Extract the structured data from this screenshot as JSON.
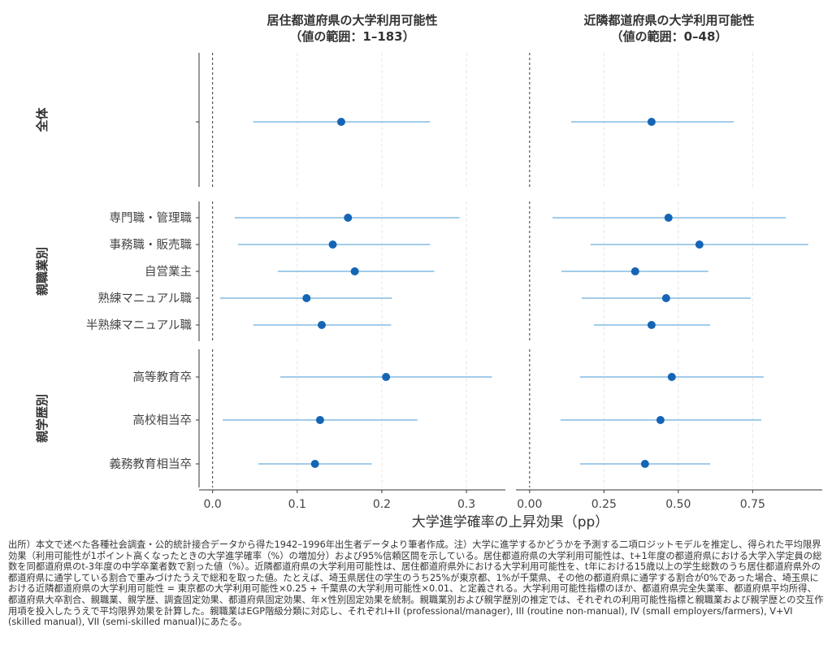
{
  "chart_data": {
    "type": "scatter",
    "subtype": "point-range (coefficient plot)",
    "xlabel": "大学進学確率の上昇効果（pp）",
    "colors": {
      "point": "#1565b5",
      "interval": "#6aaedc"
    },
    "grid": "vertical dashed",
    "reference_line": 0,
    "panels": [
      {
        "title": "居住都道府県の大学利用可能性",
        "subtitle": "（値の範囲：1–183）",
        "xlim": [
          -0.016,
          0.346
        ],
        "ticks": [
          "0.0",
          "0.1",
          "0.2",
          "0.3"
        ],
        "tick_values": [
          0,
          0.1,
          0.2,
          0.3
        ]
      },
      {
        "title": "近隣都道府県の大学利用可能性",
        "subtitle": "（値の範囲：0–48）",
        "xlim": [
          -0.046,
          0.984
        ],
        "ticks": [
          "0.00",
          "0.25",
          "0.50",
          "0.75"
        ],
        "tick_values": [
          0,
          0.25,
          0.5,
          0.75
        ]
      }
    ],
    "groups": [
      {
        "name": "全体",
        "categories": [
          ""
        ],
        "values": [
          [
            0.152,
            0.048,
            0.257
          ]
        ],
        "values2": [
          [
            0.41,
            0.14,
            0.686
          ]
        ]
      },
      {
        "name": "親職業別",
        "categories": [
          "専門職・管理職",
          "事務職・販売職",
          "自営業主",
          "熟練マニュアル職",
          "半熟練マニュアル職"
        ],
        "values": [
          [
            0.16,
            0.026,
            0.292
          ],
          [
            0.142,
            0.03,
            0.257
          ],
          [
            0.168,
            0.077,
            0.262
          ],
          [
            0.111,
            0.009,
            0.212
          ],
          [
            0.129,
            0.048,
            0.211
          ]
        ],
        "values2": [
          [
            0.467,
            0.077,
            0.861
          ],
          [
            0.571,
            0.205,
            0.937
          ],
          [
            0.355,
            0.107,
            0.601
          ],
          [
            0.459,
            0.175,
            0.743
          ],
          [
            0.41,
            0.216,
            0.607
          ]
        ]
      },
      {
        "name": "親学歴別",
        "categories": [
          "高等教育卒",
          "高校相当卒",
          "義務教育相当卒"
        ],
        "values": [
          [
            0.205,
            0.08,
            0.33
          ],
          [
            0.127,
            0.012,
            0.242
          ],
          [
            0.121,
            0.054,
            0.188
          ]
        ],
        "values2": [
          [
            0.478,
            0.169,
            0.787
          ],
          [
            0.44,
            0.104,
            0.779
          ],
          [
            0.388,
            0.169,
            0.607
          ]
        ]
      }
    ],
    "value_format": "[estimate, ci_lower_95, ci_upper_95]"
  },
  "note": "出所）本文で述べた各種社会調査・公的統計接合データから得た1942–1996年出生者データより筆者作成。注）大学に進学するかどうかを予測する二項ロジットモデルを推定し、得られた平均限界効果（利用可能性が1ポイント高くなったときの大学進学確率（%）の増加分）および95%信頼区間を示している。居住都道府県の大学利用可能性は、t+1年度の都道府県における大学入学定員の総数を同都道府県のt-3年度の中学卒業者数で割った値（%）。近隣都道府県の大学利用可能性は、居住都道府県外における大学利用可能性を、t年における15歳以上の学生総数のうち居住都道府県外の都道府県に通学している割合で重みづけたうえで総和を取った値。たとえば、埼玉県居住の学生のうち25%が東京都、1%が千葉県、その他の都道府県に通学する割合が0%であった場合、埼玉県における近隣都道府県の大学利用可能性 = 東京都の大学利用可能性×0.25 + 千葉県の大学利用可能性×0.01、と定義される。大学利用可能性指標のほか、都道府県完全失業率、都道府県平均所得、都道府県大卒割合、親職業、親学歴、調査固定効果、都道府県固定効果、年×性別固定効果を統制。親職業別および親学歴別の推定では、それぞれの利用可能性指標と親職業および親学歴との交互作用項を投入したうえで平均限界効果を計算した。親職業はEGP階級分類に対応し、それぞれI+II (professional/manager), III (routine non-manual), IV (small employers/farmers), V+VI (skilled manual), VII (semi-skilled manual)にあたる。"
}
